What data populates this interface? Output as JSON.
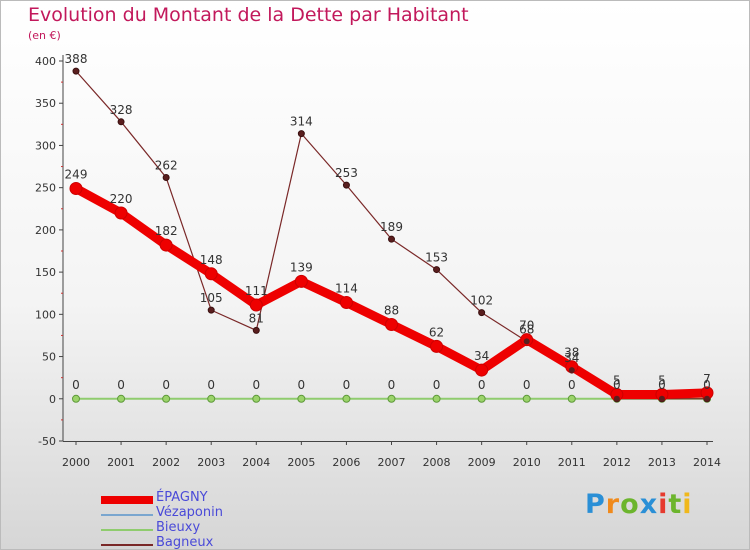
{
  "title": "Evolution du Montant de la Dette par Habitant",
  "subtitle": "(en €)",
  "logo": [
    "P",
    "r",
    "o",
    "x",
    "i",
    "t",
    "i"
  ],
  "chart_data": {
    "type": "line",
    "x": [
      "2000",
      "2001",
      "2002",
      "2003",
      "2004",
      "2005",
      "2006",
      "2007",
      "2008",
      "2009",
      "2010",
      "2011",
      "2012",
      "2013",
      "2014"
    ],
    "ylim": [
      -50,
      400
    ],
    "yticks": [
      -50,
      0,
      50,
      100,
      150,
      200,
      250,
      300,
      350,
      400
    ],
    "grid": false,
    "legend_position": "bottom-left",
    "series": [
      {
        "name": "ÉPAGNY",
        "color": "#ee0000",
        "values": [
          249,
          220,
          182,
          148,
          111,
          139,
          114,
          88,
          62,
          34,
          70,
          38,
          5,
          5,
          7
        ],
        "labels": [
          "249",
          "220",
          "182",
          "148",
          "111",
          "139",
          "114",
          "88",
          "62",
          "34",
          "70",
          "38",
          "5",
          "5",
          "7"
        ]
      },
      {
        "name": "Vézaponin",
        "color": "#7aa6cf",
        "values": [
          null,
          null,
          null,
          null,
          null,
          null,
          null,
          null,
          null,
          null,
          null,
          null,
          null,
          null,
          null
        ],
        "labels": []
      },
      {
        "name": "Bieuxy",
        "color": "#8fcc6e",
        "values": [
          0,
          0,
          0,
          0,
          0,
          0,
          0,
          0,
          0,
          0,
          0,
          0,
          0,
          0,
          0
        ],
        "labels": [
          "0",
          "0",
          "0",
          "0",
          "0",
          "0",
          "0",
          "0",
          "0",
          "0",
          "0",
          "0",
          "0",
          "0",
          "0"
        ]
      },
      {
        "name": "Bagneux",
        "color": "#7a2828",
        "values": [
          388,
          328,
          262,
          105,
          81,
          314,
          253,
          189,
          153,
          102,
          68,
          34,
          0,
          0,
          0
        ],
        "labels": [
          "388",
          "328",
          "262",
          "105",
          "81",
          "314",
          "253",
          "189",
          "153",
          "102",
          "68",
          "34",
          "",
          "",
          ""
        ]
      }
    ]
  }
}
